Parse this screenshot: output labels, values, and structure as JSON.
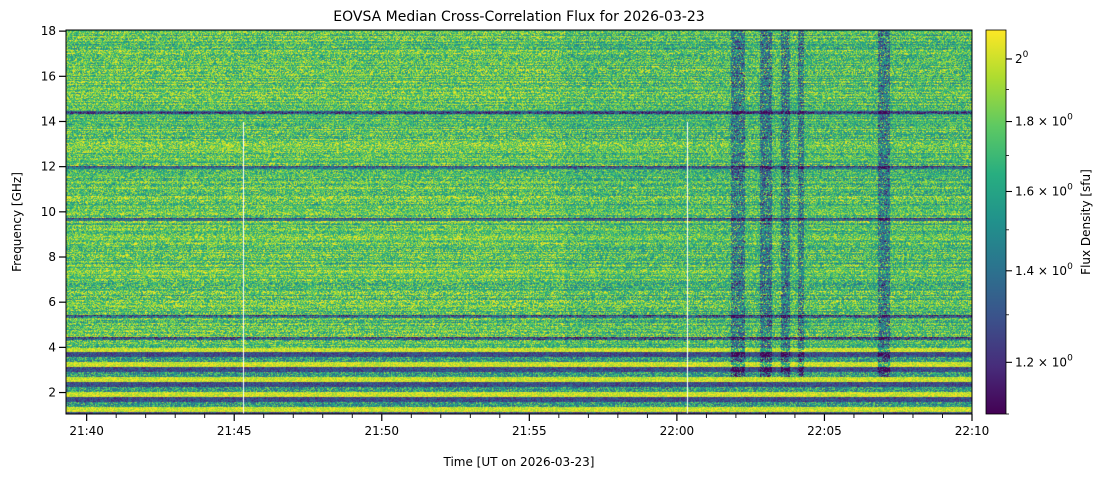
{
  "chart_data": {
    "type": "heatmap",
    "title": "EOVSA Median Cross-Correlation Flux for 2026-03-23",
    "xlabel": "Time [UT on 2026-03-23]",
    "ylabel": "Frequency [GHz]",
    "x_range_minutes_utc": [
      1299.3,
      1330.0
    ],
    "y_range_ghz": [
      1.05,
      18.05
    ],
    "x_ticks": [
      {
        "label": "21:40",
        "minutes": 1300
      },
      {
        "label": "21:45",
        "minutes": 1305
      },
      {
        "label": "21:50",
        "minutes": 1310
      },
      {
        "label": "21:55",
        "minutes": 1315
      },
      {
        "label": "22:00",
        "minutes": 1320
      },
      {
        "label": "22:05",
        "minutes": 1325
      },
      {
        "label": "22:10",
        "minutes": 1330
      }
    ],
    "y_ticks": [
      {
        "label": "2",
        "value": 2
      },
      {
        "label": "4",
        "value": 4
      },
      {
        "label": "6",
        "value": 6
      },
      {
        "label": "8",
        "value": 8
      },
      {
        "label": "10",
        "value": 10
      },
      {
        "label": "12",
        "value": 12
      },
      {
        "label": "14",
        "value": 14
      },
      {
        "label": "16",
        "value": 16
      },
      {
        "label": "18",
        "value": 18
      }
    ],
    "colorbar": {
      "label": "Flux Density [sfu]",
      "scale": "log",
      "colormap": "viridis",
      "range_sfu": [
        1.1,
        2.1
      ],
      "ticks": [
        {
          "base": "2",
          "mult": "",
          "exp": "0",
          "value": 2.0
        },
        {
          "base": "10",
          "mult": "1.8 × ",
          "exp": "0",
          "value": 1.8
        },
        {
          "base": "10",
          "mult": "1.6 × ",
          "exp": "0",
          "value": 1.6
        },
        {
          "base": "10",
          "mult": "1.4 × ",
          "exp": "0",
          "value": 1.4
        },
        {
          "base": "10",
          "mult": "1.2 × ",
          "exp": "0",
          "value": 1.2
        }
      ]
    },
    "features": {
      "data_gaps_minutes": [
        1305.3,
        1320.35
      ],
      "broadband_emission_minutes": [
        [
          1321.8,
          1322.3
        ],
        [
          1322.8,
          1323.2
        ],
        [
          1323.5,
          1323.8
        ],
        [
          1324.1,
          1324.3
        ],
        [
          1326.8,
          1327.2
        ]
      ],
      "low_band_ghz": [
        1.05,
        4.0
      ],
      "dark_rfi_bands_ghz": [
        1.9,
        3.4,
        3.7,
        4.4,
        5.4,
        9.7,
        12.0,
        14.4
      ]
    }
  }
}
